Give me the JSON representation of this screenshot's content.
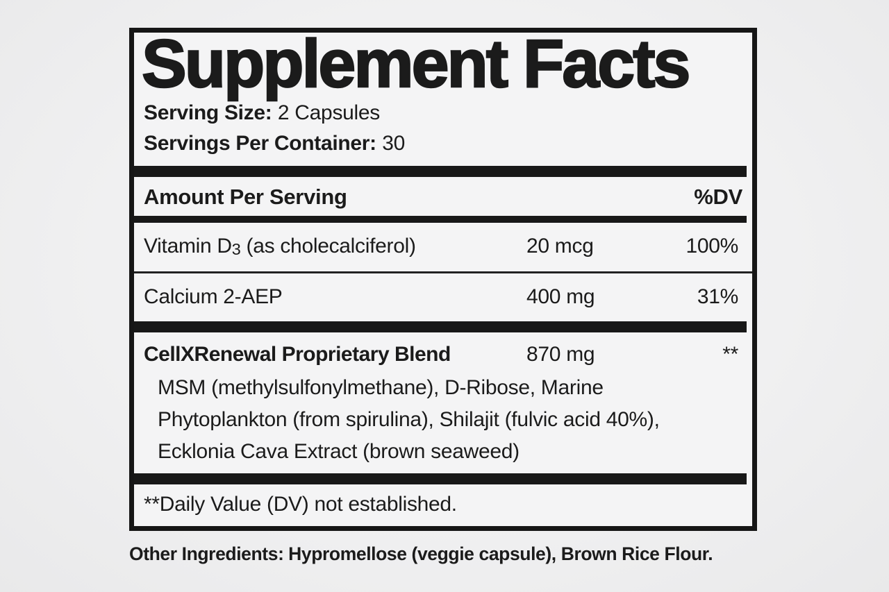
{
  "colors": {
    "ink": "#1b1b1b",
    "bar": "#181818",
    "page_bg": "#f0f0f1",
    "panel_bg": "#f4f4f5"
  },
  "label": {
    "title": "Supplement Facts",
    "serving_size": {
      "label": "Serving Size:",
      "value": "2 Capsules"
    },
    "servings_per_container": {
      "label": "Servings Per Container:",
      "value": "30"
    },
    "columns": {
      "amount_header": "Amount Per Serving",
      "dv_header": "%DV"
    },
    "nutrients": [
      {
        "name_pre": "Vitamin D",
        "name_sub": "3",
        "name_post": " (as cholecalciferol)",
        "amount": "20 mcg",
        "dv": "100%"
      },
      {
        "name": "Calcium 2-AEP",
        "amount": "400 mg",
        "dv": "31%"
      }
    ],
    "blend": {
      "name": "CellXRenewal Proprietary Blend",
      "amount": "870 mg",
      "dv": "**",
      "ingredient_lines": [
        "MSM (methylsulfonylmethane), D-Ribose, Marine",
        "Phytoplankton (from spirulina), Shilajit (fulvic acid 40%),",
        "Ecklonia Cava Extract (brown seaweed)"
      ]
    },
    "footnote": "**Daily Value (DV) not established.",
    "other_ingredients": {
      "label": "Other Ingredients:",
      "value": "Hypromellose (veggie capsule), Brown Rice Flour."
    }
  }
}
